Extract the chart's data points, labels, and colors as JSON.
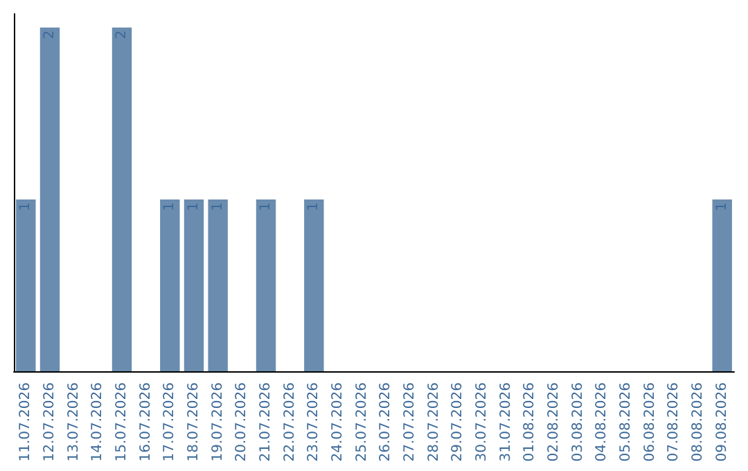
{
  "chart_data": {
    "type": "bar",
    "categories": [
      "11.07.2026",
      "12.07.2026",
      "13.07.2026",
      "14.07.2026",
      "15.07.2026",
      "16.07.2026",
      "17.07.2026",
      "18.07.2026",
      "19.07.2026",
      "20.07.2026",
      "21.07.2026",
      "22.07.2026",
      "23.07.2026",
      "24.07.2026",
      "25.07.2026",
      "26.07.2026",
      "27.07.2026",
      "28.07.2026",
      "29.07.2026",
      "30.07.2026",
      "31.07.2026",
      "01.08.2026",
      "02.08.2026",
      "03.08.2026",
      "04.08.2026",
      "05.08.2026",
      "06.08.2026",
      "07.08.2026",
      "08.08.2026",
      "09.08.2026"
    ],
    "values": [
      1,
      2,
      0,
      0,
      2,
      0,
      1,
      1,
      1,
      0,
      1,
      0,
      1,
      0,
      0,
      0,
      0,
      0,
      0,
      0,
      0,
      0,
      0,
      0,
      0,
      0,
      0,
      0,
      0,
      1
    ],
    "value_labels": [
      "1",
      "2",
      null,
      null,
      "2",
      null,
      "1",
      "1",
      "1",
      null,
      "1",
      null,
      "1",
      null,
      null,
      null,
      null,
      null,
      null,
      null,
      null,
      null,
      null,
      null,
      null,
      null,
      null,
      null,
      null,
      "1"
    ],
    "color": "#6a8caf",
    "tick_labels": "x"
  }
}
